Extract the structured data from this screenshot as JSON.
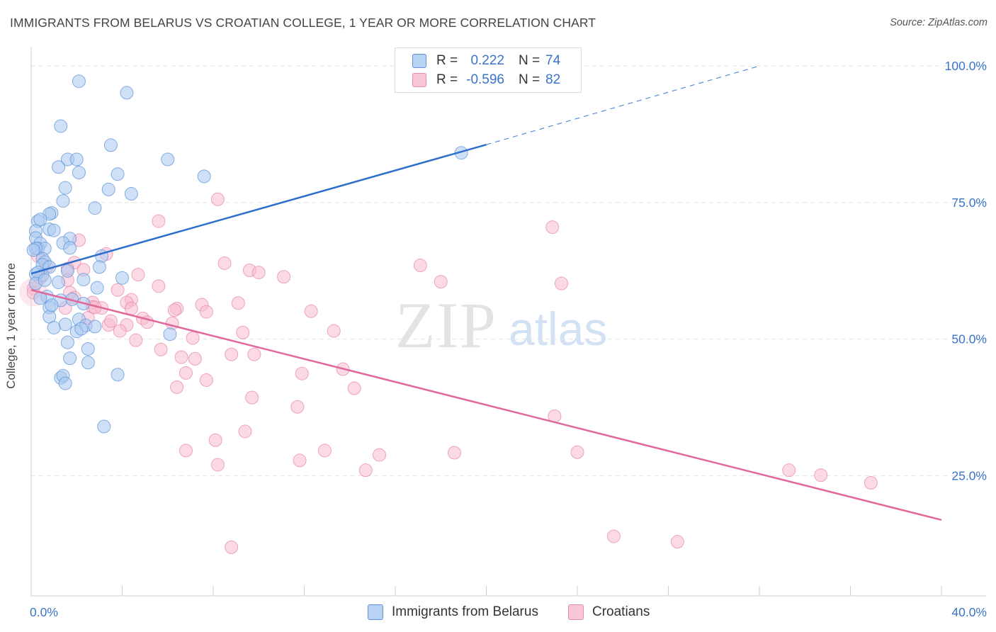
{
  "title": "IMMIGRANTS FROM BELARUS VS CROATIAN COLLEGE, 1 YEAR OR MORE CORRELATION CHART",
  "source": "Source: ZipAtlas.com",
  "watermark": {
    "zip": "ZIP",
    "atlas": "atlas"
  },
  "legend_top": [
    {
      "r_label": "R =",
      "r_value": "0.222",
      "n_label": "N =",
      "n_value": "74"
    },
    {
      "r_label": "R =",
      "r_value": "-0.596",
      "n_label": "N =",
      "n_value": "82"
    }
  ],
  "legend_bottom": [
    {
      "label": "Immigrants from Belarus"
    },
    {
      "label": "Croatians"
    }
  ],
  "colors": {
    "blue_fill": "#aac8f0",
    "blue_stroke": "#5f95d8",
    "blue_line": "#2e6fcc",
    "pink_fill": "#f8bcd0",
    "pink_stroke": "#e88aaa",
    "pink_line": "#e0689a",
    "tick_text": "#3a74c9",
    "grid": "#e4e4e4"
  },
  "chart_data": {
    "type": "scatter",
    "title": "IMMIGRANTS FROM BELARUS VS CROATIAN COLLEGE, 1 YEAR OR MORE CORRELATION CHART",
    "xlabel": "",
    "ylabel": "College, 1 year or more",
    "xlim": [
      0,
      40
    ],
    "ylim": [
      3,
      103
    ],
    "x_tick_labels": [
      {
        "value": 0,
        "label": "0.0%"
      },
      {
        "value": 40,
        "label": "40.0%"
      }
    ],
    "y_tick_labels": [
      {
        "value": 100,
        "label": "100.0%"
      },
      {
        "value": 75,
        "label": "75.0%"
      },
      {
        "value": 50,
        "label": "50.0%"
      },
      {
        "value": 25,
        "label": "25.0%"
      }
    ],
    "grid": true,
    "series": [
      {
        "name": "Immigrants from Belarus",
        "color": "#aac8f0",
        "trend": {
          "x0": 0,
          "y0": 62.0,
          "x1": 20,
          "y1": 85.6,
          "dash_to_x": 32,
          "dash_to_y": 100
        },
        "points": [
          [
            2.1,
            97.2
          ],
          [
            4.2,
            95.1
          ],
          [
            1.3,
            89.0
          ],
          [
            3.5,
            85.5
          ],
          [
            6.0,
            82.9
          ],
          [
            1.6,
            82.9
          ],
          [
            2.0,
            82.9
          ],
          [
            1.2,
            81.5
          ],
          [
            2.1,
            80.5
          ],
          [
            3.8,
            80.2
          ],
          [
            7.6,
            79.8
          ],
          [
            1.5,
            77.7
          ],
          [
            3.4,
            77.4
          ],
          [
            4.4,
            76.6
          ],
          [
            1.4,
            75.3
          ],
          [
            2.8,
            74.0
          ],
          [
            0.9,
            73.1
          ],
          [
            0.8,
            72.9
          ],
          [
            0.3,
            71.6
          ],
          [
            0.4,
            71.9
          ],
          [
            0.8,
            70.1
          ],
          [
            0.2,
            69.8
          ],
          [
            0.2,
            68.5
          ],
          [
            1.7,
            68.4
          ],
          [
            0.4,
            67.5
          ],
          [
            1.4,
            67.6
          ],
          [
            0.3,
            66.6
          ],
          [
            0.6,
            66.6
          ],
          [
            1.7,
            66.7
          ],
          [
            0.2,
            66.6
          ],
          [
            3.1,
            65.2
          ],
          [
            0.5,
            64.7
          ],
          [
            0.6,
            64.1
          ],
          [
            0.5,
            63.6
          ],
          [
            0.8,
            63.2
          ],
          [
            3.0,
            63.2
          ],
          [
            1.6,
            62.5
          ],
          [
            0.5,
            61.7
          ],
          [
            0.2,
            61.9
          ],
          [
            0.3,
            62.2
          ],
          [
            4.0,
            61.2
          ],
          [
            1.2,
            60.4
          ],
          [
            2.3,
            60.9
          ],
          [
            0.2,
            60.2
          ],
          [
            2.9,
            59.4
          ],
          [
            0.7,
            57.8
          ],
          [
            0.4,
            57.5
          ],
          [
            1.3,
            57.1
          ],
          [
            1.8,
            57.3
          ],
          [
            2.3,
            56.5
          ],
          [
            0.8,
            55.8
          ],
          [
            0.8,
            54.1
          ],
          [
            2.1,
            53.6
          ],
          [
            2.4,
            52.5
          ],
          [
            1.5,
            52.7
          ],
          [
            1.0,
            52.1
          ],
          [
            2.8,
            52.3
          ],
          [
            2.0,
            51.4
          ],
          [
            2.2,
            51.9
          ],
          [
            6.1,
            50.9
          ],
          [
            1.6,
            49.4
          ],
          [
            2.5,
            48.2
          ],
          [
            1.7,
            46.5
          ],
          [
            2.5,
            45.7
          ],
          [
            3.8,
            43.5
          ],
          [
            1.3,
            42.9
          ],
          [
            1.4,
            43.3
          ],
          [
            1.5,
            41.9
          ],
          [
            3.2,
            34.0
          ],
          [
            18.9,
            84.1
          ],
          [
            0.1,
            66.3
          ],
          [
            1.0,
            69.9
          ],
          [
            0.6,
            60.8
          ],
          [
            0.9,
            56.2
          ]
        ]
      },
      {
        "name": "Croatians",
        "color": "#f8bcd0",
        "trend": {
          "x0": 0,
          "y0": 59.0,
          "x1": 40,
          "y1": 16.9
        },
        "points": [
          [
            8.2,
            75.6
          ],
          [
            5.6,
            71.6
          ],
          [
            22.9,
            70.5
          ],
          [
            2.1,
            68.1
          ],
          [
            3.3,
            65.6
          ],
          [
            0.3,
            65.2
          ],
          [
            1.9,
            64.0
          ],
          [
            0.7,
            63.3
          ],
          [
            8.5,
            63.9
          ],
          [
            17.1,
            63.5
          ],
          [
            1.6,
            62.9
          ],
          [
            2.3,
            62.7
          ],
          [
            9.6,
            62.6
          ],
          [
            10.0,
            62.2
          ],
          [
            4.7,
            61.8
          ],
          [
            11.1,
            61.4
          ],
          [
            0.4,
            61.2
          ],
          [
            1.6,
            60.8
          ],
          [
            18.0,
            60.5
          ],
          [
            23.3,
            60.2
          ],
          [
            5.6,
            59.7
          ],
          [
            0.1,
            59.3
          ],
          [
            1.7,
            58.5
          ],
          [
            3.8,
            59.0
          ],
          [
            1.9,
            57.6
          ],
          [
            4.4,
            57.2
          ],
          [
            2.7,
            56.7
          ],
          [
            4.2,
            56.7
          ],
          [
            9.1,
            56.6
          ],
          [
            7.5,
            56.3
          ],
          [
            2.7,
            55.9
          ],
          [
            3.1,
            55.7
          ],
          [
            1.5,
            55.7
          ],
          [
            4.4,
            55.6
          ],
          [
            6.4,
            55.6
          ],
          [
            6.3,
            55.3
          ],
          [
            7.7,
            55.0
          ],
          [
            12.3,
            55.1
          ],
          [
            2.5,
            53.9
          ],
          [
            4.9,
            53.8
          ],
          [
            5.1,
            53.1
          ],
          [
            6.2,
            52.9
          ],
          [
            3.4,
            52.6
          ],
          [
            4.2,
            52.6
          ],
          [
            3.9,
            51.5
          ],
          [
            13.3,
            51.5
          ],
          [
            9.3,
            51.2
          ],
          [
            7.1,
            50.2
          ],
          [
            4.6,
            49.8
          ],
          [
            5.7,
            48.1
          ],
          [
            8.8,
            47.2
          ],
          [
            9.8,
            47.2
          ],
          [
            6.6,
            46.7
          ],
          [
            7.2,
            46.4
          ],
          [
            13.7,
            44.5
          ],
          [
            6.8,
            43.8
          ],
          [
            11.9,
            43.7
          ],
          [
            7.7,
            42.5
          ],
          [
            6.4,
            41.2
          ],
          [
            14.2,
            41.0
          ],
          [
            9.7,
            39.3
          ],
          [
            11.7,
            37.6
          ],
          [
            23.0,
            35.9
          ],
          [
            9.4,
            33.1
          ],
          [
            8.1,
            31.5
          ],
          [
            6.8,
            29.6
          ],
          [
            12.9,
            29.6
          ],
          [
            18.6,
            29.2
          ],
          [
            15.3,
            28.8
          ],
          [
            11.8,
            27.8
          ],
          [
            8.2,
            27.0
          ],
          [
            14.7,
            26.0
          ],
          [
            33.3,
            26.0
          ],
          [
            34.7,
            25.1
          ],
          [
            36.9,
            23.7
          ],
          [
            25.6,
            13.9
          ],
          [
            28.4,
            12.9
          ],
          [
            8.8,
            11.9
          ],
          [
            0.1,
            58.5
          ],
          [
            2.8,
            55.8
          ],
          [
            3.5,
            53.3
          ],
          [
            24.0,
            29.3
          ]
        ]
      }
    ]
  }
}
